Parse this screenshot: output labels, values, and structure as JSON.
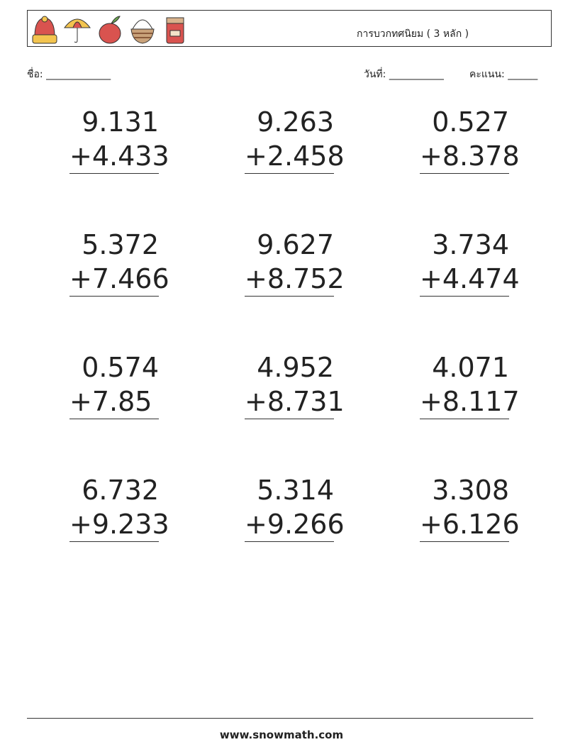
{
  "header": {
    "icons": [
      "winter-hat-icon",
      "umbrella-icon",
      "apple-icon",
      "basket-icon",
      "jam-jar-icon"
    ],
    "title": "การบวกทศนิยม ( 3 หลัก )"
  },
  "fields": {
    "name": "ชื่อ: _____________",
    "date": "วันที่: ___________",
    "score": "คะแนน: ______"
  },
  "problems": [
    {
      "a": "9.131",
      "b": "+4.433"
    },
    {
      "a": "9.263",
      "b": "+2.458"
    },
    {
      "a": "0.527",
      "b": "+8.378"
    },
    {
      "a": "5.372",
      "b": "+7.466"
    },
    {
      "a": "9.627",
      "b": "+8.752"
    },
    {
      "a": "3.734",
      "b": "+4.474"
    },
    {
      "a": "0.574",
      "b": "+7.85 "
    },
    {
      "a": "4.952",
      "b": "+8.731"
    },
    {
      "a": "4.071",
      "b": "+8.117"
    },
    {
      "a": "6.732",
      "b": "+9.233"
    },
    {
      "a": "5.314",
      "b": "+9.266"
    },
    {
      "a": "3.308",
      "b": "+6.126"
    }
  ],
  "footer": "www.snowmath.com"
}
